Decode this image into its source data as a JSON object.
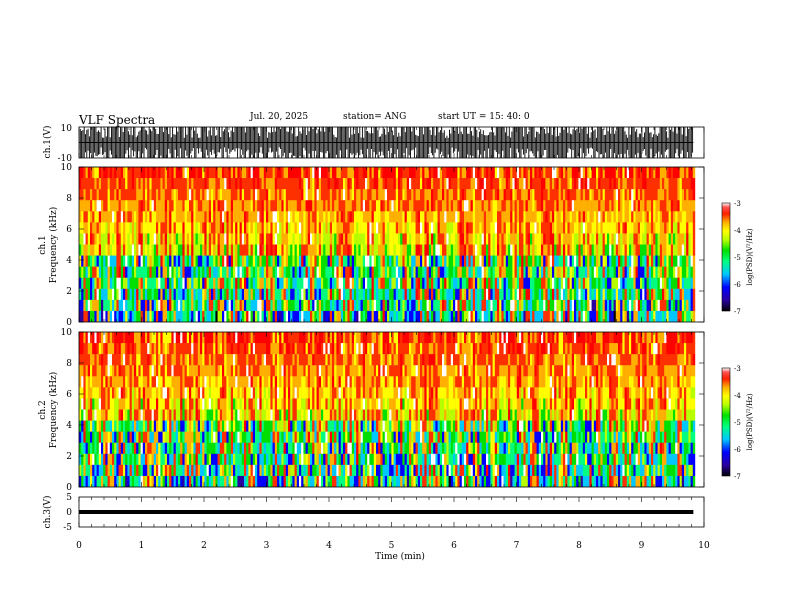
{
  "header": {
    "title": "VLF Spectra",
    "date": "Jul. 20, 2025",
    "station": "station= ANG",
    "start": "start UT = 15: 40: 0"
  },
  "colors": {
    "colormap": [
      "#000000",
      "#2a00a0",
      "#0000ff",
      "#00c8ff",
      "#00ff80",
      "#00e000",
      "#b8ff00",
      "#ffff00",
      "#ffb000",
      "#ff3000",
      "#ff0000",
      "#ffffff"
    ]
  },
  "chart_data": [
    {
      "type": "line",
      "panel": "ch1-waveform",
      "ylabel": "ch.1(V)",
      "ylim": [
        -10,
        10
      ],
      "yticks": [
        "10",
        "-10"
      ],
      "x_unit": "min",
      "xlim": [
        0,
        10
      ],
      "data_extent_min": 9.83,
      "amplitude_range": [
        -10,
        10
      ],
      "note_visible": "dense saturated burst waveform"
    },
    {
      "type": "heatmap",
      "panel": "ch1-spectrogram",
      "ylabel": "ch.1\nFrequency (kHz)",
      "ylim": [
        0,
        10
      ],
      "yticks": [
        "0",
        "2",
        "4",
        "6",
        "8",
        "10"
      ],
      "xlim": [
        0,
        10
      ],
      "data_extent_min": 9.83,
      "colorbar": {
        "label": "log(PSD)(V²/Hz)",
        "range": [
          -7,
          -3
        ],
        "ticks": [
          "-3",
          "-4",
          "-5",
          "-6",
          "-7"
        ]
      }
    },
    {
      "type": "heatmap",
      "panel": "ch2-spectrogram",
      "ylabel": "ch.2\nFrequency (kHz)",
      "ylim": [
        0,
        10
      ],
      "yticks": [
        "0",
        "2",
        "4",
        "6",
        "8",
        "10"
      ],
      "xlim": [
        0,
        10
      ],
      "data_extent_min": 9.83,
      "colorbar": {
        "label": "log(PSD)(V²/Hz)",
        "range": [
          -7,
          -3
        ],
        "ticks": [
          "-3",
          "-4",
          "-5",
          "-6",
          "-7"
        ]
      }
    },
    {
      "type": "line",
      "panel": "ch3-voltage",
      "ylabel": "ch.3(V)",
      "ylim": [
        -5,
        5
      ],
      "yticks": [
        "5",
        "0",
        "-5"
      ],
      "xlim": [
        0,
        10
      ],
      "xticks": [
        "0",
        "1",
        "2",
        "3",
        "4",
        "5",
        "6",
        "7",
        "8",
        "9",
        "10"
      ],
      "xlabel": "Time (min)",
      "x": [
        0,
        9.83
      ],
      "y": [
        0,
        0
      ]
    }
  ]
}
